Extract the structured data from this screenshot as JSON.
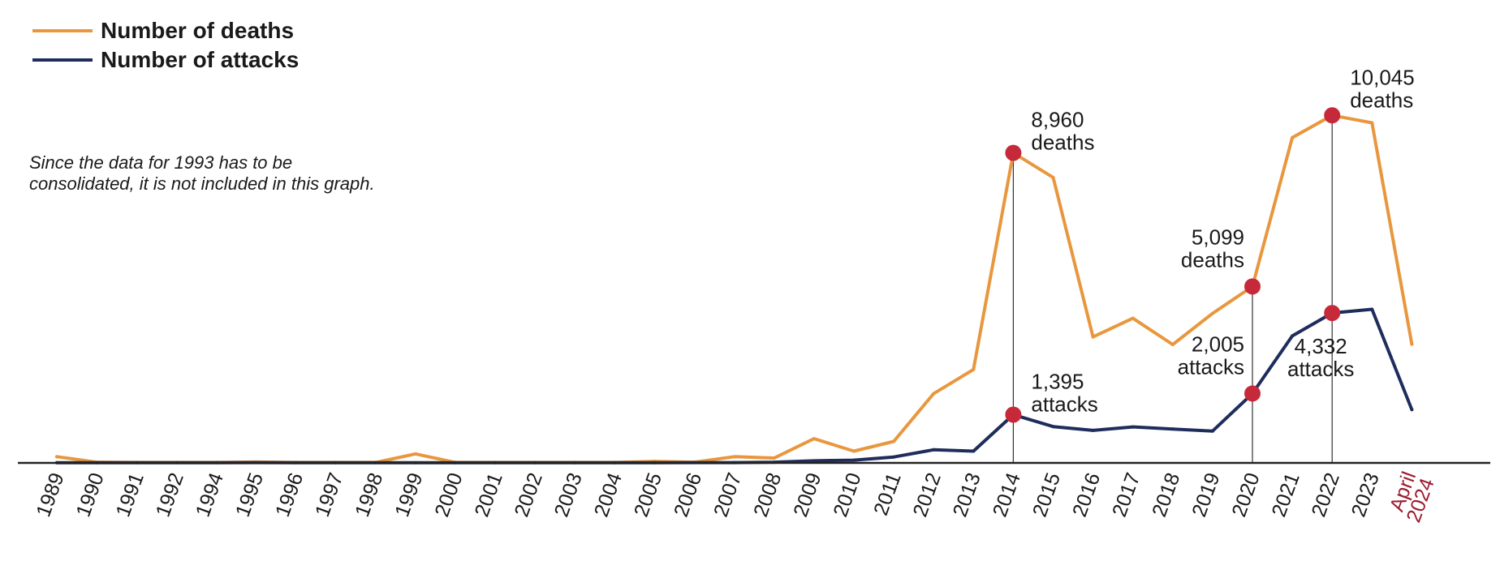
{
  "colors": {
    "deaths": "#e8973e",
    "attacks": "#1f2d5c",
    "highlight": "#c62a3a",
    "axis": "#222222",
    "special_tick": "#9b1b30"
  },
  "legend": [
    {
      "label": "Number of deaths",
      "series": "deaths"
    },
    {
      "label": "Number of attacks",
      "series": "attacks"
    }
  ],
  "note": [
    "Since the data for 1993 has to be",
    "consolidated, it is not included in this graph."
  ],
  "chart_data": {
    "type": "line",
    "categories": [
      "1989",
      "1990",
      "1991",
      "1992",
      "1994",
      "1995",
      "1996",
      "1997",
      "1998",
      "1999",
      "2000",
      "2001",
      "2002",
      "2003",
      "2004",
      "2005",
      "2006",
      "2007",
      "2008",
      "2009",
      "2010",
      "2011",
      "2012",
      "2013",
      "2014",
      "2015",
      "2016",
      "2017",
      "2018",
      "2019",
      "2020",
      "2021",
      "2022",
      "2023",
      "April 2024"
    ],
    "special_categories": [
      "April 2024"
    ],
    "series": [
      {
        "name": "Number of deaths",
        "key": "deaths",
        "values": [
          180,
          20,
          15,
          15,
          15,
          25,
          15,
          15,
          15,
          260,
          15,
          15,
          15,
          15,
          15,
          45,
          20,
          180,
          140,
          700,
          340,
          620,
          2000,
          2700,
          8960,
          8250,
          3640,
          4180,
          3420,
          4320,
          5099,
          9400,
          10045,
          9830,
          3430
        ]
      },
      {
        "name": "Number of attacks",
        "key": "attacks",
        "values": [
          5,
          5,
          5,
          5,
          5,
          10,
          5,
          5,
          5,
          5,
          5,
          5,
          5,
          5,
          5,
          5,
          10,
          10,
          20,
          60,
          80,
          170,
          380,
          340,
          1395,
          1050,
          940,
          1040,
          980,
          920,
          2005,
          3670,
          4332,
          4440,
          1540
        ]
      }
    ],
    "ylim": [
      0,
      11200
    ],
    "highlights": [
      {
        "category": "2014",
        "series": "deaths",
        "label": [
          "8,960",
          "deaths"
        ],
        "align": "left"
      },
      {
        "category": "2014",
        "series": "attacks",
        "label": [
          "1,395",
          "attacks"
        ],
        "align": "left"
      },
      {
        "category": "2020",
        "series": "deaths",
        "label": [
          "5,099",
          "deaths"
        ],
        "align": "right"
      },
      {
        "category": "2020",
        "series": "attacks",
        "label": [
          "2,005",
          "attacks"
        ],
        "align": "right"
      },
      {
        "category": "2022",
        "series": "deaths",
        "label": [
          "10,045",
          "deaths"
        ],
        "align": "left"
      },
      {
        "category": "2022",
        "series": "attacks",
        "label": [
          "4,332",
          "attacks"
        ],
        "align": "center"
      }
    ],
    "guide_lines": [
      "2014",
      "2020",
      "2022"
    ]
  }
}
